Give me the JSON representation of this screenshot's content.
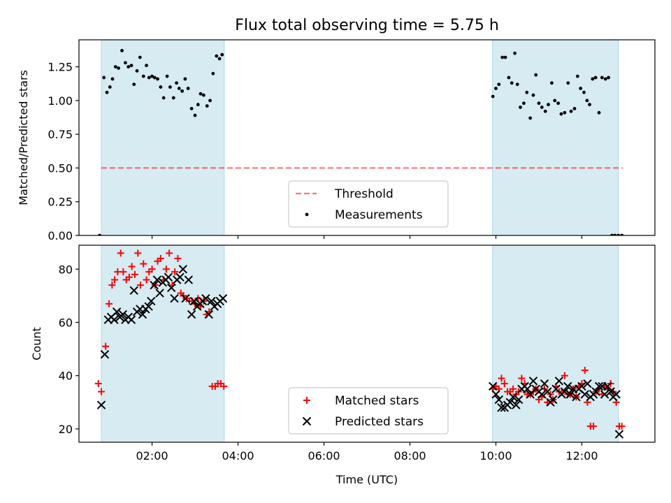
{
  "title": "Flux total observing time = 5.75 h",
  "colors": {
    "shade": "#add8e6",
    "threshold": "#ff0000",
    "matched": "#ff0000",
    "predicted": "#000000",
    "measurement": "#000000"
  },
  "chart_data": [
    {
      "type": "scatter",
      "ylabel": "Matched/Predicted stars",
      "xlabel": "",
      "xlim": [
        0.3,
        13.7
      ],
      "ylim": [
        0,
        1.45
      ],
      "yticks": [
        0,
        0.25,
        0.5,
        0.75,
        1.0,
        1.25
      ],
      "ytick_labels": [
        "0.00",
        "0.25",
        "0.50",
        "0.75",
        "1.00",
        "1.25"
      ],
      "xticks": [
        2,
        4,
        6,
        8,
        10,
        12
      ],
      "shaded_ranges": [
        [
          0.82,
          3.68
        ],
        [
          9.92,
          12.85
        ]
      ],
      "threshold": {
        "name": "Threshold",
        "value": 0.5,
        "x_range": [
          0.82,
          12.95
        ]
      },
      "legend": {
        "position": "lower center",
        "entries": [
          "Threshold",
          "Measurements"
        ]
      },
      "series": [
        {
          "name": "Measurements",
          "x": [
            0.78,
            0.88,
            0.95,
            1.02,
            1.08,
            1.15,
            1.22,
            1.3,
            1.38,
            1.45,
            1.52,
            1.58,
            1.65,
            1.72,
            1.8,
            1.87,
            1.93,
            2.0,
            2.06,
            2.13,
            2.2,
            2.27,
            2.35,
            2.42,
            2.5,
            2.57,
            2.63,
            2.7,
            2.77,
            2.84,
            2.92,
            3.0,
            3.07,
            3.13,
            3.2,
            3.28,
            3.35,
            3.42,
            3.5,
            3.57,
            3.63,
            9.93,
            10.0,
            10.07,
            10.15,
            10.22,
            10.3,
            10.37,
            10.44,
            10.5,
            10.57,
            10.65,
            10.72,
            10.8,
            10.87,
            10.93,
            11.0,
            11.07,
            11.15,
            11.22,
            11.3,
            11.37,
            11.45,
            11.52,
            11.6,
            11.68,
            11.75,
            11.83,
            11.9,
            11.97,
            12.05,
            12.12,
            12.18,
            12.25,
            12.32,
            12.4,
            12.47,
            12.55,
            12.62,
            12.7,
            12.77,
            12.85,
            12.93
          ],
          "y": [
            0.0,
            1.17,
            1.06,
            1.1,
            1.16,
            1.25,
            1.24,
            1.37,
            1.28,
            1.25,
            1.26,
            1.12,
            1.22,
            1.32,
            1.18,
            1.26,
            1.17,
            1.18,
            1.17,
            1.16,
            1.1,
            1.02,
            1.18,
            1.1,
            1.02,
            1.13,
            1.09,
            1.07,
            1.16,
            1.09,
            0.94,
            0.89,
            0.97,
            1.05,
            1.04,
            0.96,
            1.0,
            1.2,
            1.33,
            1.31,
            1.34,
            1.03,
            1.09,
            1.12,
            1.32,
            1.32,
            1.17,
            1.13,
            1.35,
            1.12,
            0.95,
            0.98,
            1.06,
            0.87,
            1.04,
            1.19,
            0.98,
            0.95,
            0.92,
            0.97,
            1.13,
            1.0,
            0.98,
            0.9,
            0.91,
            1.13,
            0.92,
            0.94,
            1.18,
            1.09,
            1.06,
            1.0,
            0.97,
            1.16,
            1.17,
            0.91,
            1.17,
            1.16,
            1.17,
            0.0,
            0.0,
            0.0,
            0.0
          ]
        }
      ]
    },
    {
      "type": "scatter",
      "ylabel": "Count",
      "xlabel": "Time (UTC)",
      "xlim": [
        0.3,
        13.7
      ],
      "ylim": [
        15,
        89
      ],
      "yticks": [
        20,
        40,
        60,
        80
      ],
      "ytick_labels": [
        "20",
        "40",
        "60",
        "80"
      ],
      "xticks": [
        2,
        4,
        6,
        8,
        10,
        12
      ],
      "xtick_labels": [
        "02:00",
        "04:00",
        "06:00",
        "08:00",
        "10:00",
        "12:00"
      ],
      "shaded_ranges": [
        [
          0.82,
          3.68
        ],
        [
          9.92,
          12.85
        ]
      ],
      "legend": {
        "position": "lower center",
        "entries": [
          "Matched stars",
          "Predicted stars"
        ]
      },
      "series": [
        {
          "name": "Matched stars",
          "x": [
            0.75,
            0.82,
            0.92,
            1.0,
            1.07,
            1.13,
            1.2,
            1.27,
            1.33,
            1.4,
            1.47,
            1.53,
            1.6,
            1.67,
            1.73,
            1.8,
            1.87,
            1.93,
            2.0,
            2.07,
            2.13,
            2.2,
            2.27,
            2.33,
            2.4,
            2.47,
            2.53,
            2.6,
            2.67,
            2.73,
            2.8,
            2.87,
            2.93,
            3.0,
            3.07,
            3.13,
            3.2,
            3.27,
            3.33,
            3.4,
            3.47,
            3.53,
            3.6,
            3.67,
            9.93,
            10.0,
            10.07,
            10.13,
            10.2,
            10.27,
            10.33,
            10.4,
            10.47,
            10.53,
            10.6,
            10.67,
            10.73,
            10.8,
            10.87,
            10.93,
            11.0,
            11.07,
            11.13,
            11.2,
            11.27,
            11.33,
            11.4,
            11.47,
            11.53,
            11.6,
            11.67,
            11.73,
            11.8,
            11.87,
            11.93,
            12.0,
            12.07,
            12.13,
            12.2,
            12.27,
            12.33,
            12.4,
            12.47,
            12.53,
            12.6,
            12.67,
            12.73,
            12.8,
            12.87,
            12.93
          ],
          "y": [
            37,
            34,
            51,
            67,
            74,
            76,
            79,
            86,
            79,
            76,
            77,
            81,
            78,
            86,
            74,
            82,
            76,
            79,
            80,
            74,
            83,
            84,
            76,
            80,
            86,
            74,
            79,
            84,
            71,
            70,
            69,
            68,
            68,
            67,
            69,
            66,
            68,
            63,
            64,
            36,
            36,
            37,
            37,
            36,
            35,
            36,
            35,
            39,
            37,
            34,
            34,
            35,
            33,
            34,
            39,
            37,
            33,
            33,
            34,
            35,
            31,
            32,
            35,
            30,
            33,
            31,
            36,
            34,
            34,
            40,
            33,
            33,
            35,
            32,
            36,
            37,
            42,
            30,
            21,
            21,
            34,
            35,
            33,
            36,
            35,
            37,
            34,
            30,
            21,
            21
          ]
        },
        {
          "name": "Predicted stars",
          "x": [
            0.82,
            0.9,
            0.98,
            1.05,
            1.12,
            1.18,
            1.25,
            1.32,
            1.38,
            1.45,
            1.52,
            1.58,
            1.65,
            1.72,
            1.78,
            1.85,
            1.92,
            1.98,
            2.05,
            2.12,
            2.18,
            2.25,
            2.32,
            2.38,
            2.45,
            2.52,
            2.58,
            2.65,
            2.72,
            2.78,
            2.85,
            2.92,
            2.98,
            3.05,
            3.12,
            3.18,
            3.25,
            3.32,
            3.38,
            3.45,
            3.52,
            3.58,
            3.65,
            9.93,
            10.0,
            10.07,
            10.13,
            10.2,
            10.27,
            10.33,
            10.4,
            10.47,
            10.53,
            10.6,
            10.67,
            10.73,
            10.8,
            10.87,
            10.93,
            11.0,
            11.07,
            11.13,
            11.2,
            11.27,
            11.33,
            11.4,
            11.47,
            11.53,
            11.6,
            11.67,
            11.73,
            11.8,
            11.87,
            11.93,
            12.0,
            12.07,
            12.13,
            12.2,
            12.27,
            12.33,
            12.4,
            12.47,
            12.53,
            12.6,
            12.67,
            12.73,
            12.8,
            12.87
          ],
          "y": [
            29,
            48,
            61,
            62,
            61,
            64,
            62,
            63,
            61,
            62,
            61,
            72,
            64,
            65,
            63,
            65,
            66,
            68,
            74,
            76,
            71,
            75,
            76,
            77,
            73,
            69,
            76,
            77,
            80,
            69,
            76,
            63,
            68,
            66,
            67,
            68,
            69,
            63,
            68,
            66,
            67,
            68,
            69,
            36,
            33,
            31,
            28,
            28,
            29,
            30,
            32,
            29,
            31,
            35,
            36,
            35,
            33,
            38,
            35,
            34,
            33,
            37,
            34,
            30,
            31,
            35,
            38,
            33,
            34,
            36,
            33,
            35,
            32,
            35,
            36,
            33,
            37,
            32,
            33,
            34,
            36,
            36,
            33,
            36,
            34,
            32,
            33,
            18
          ]
        }
      ]
    }
  ]
}
